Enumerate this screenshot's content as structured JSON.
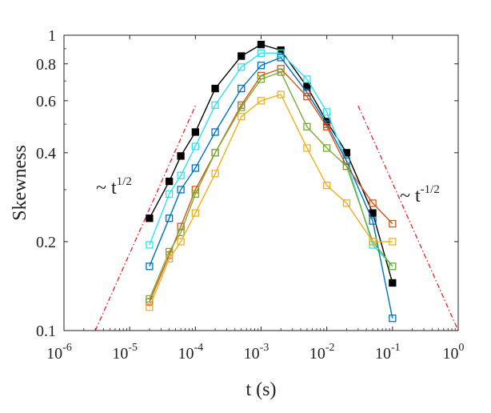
{
  "chart_data": {
    "type": "line",
    "xlabel": "t (s)",
    "ylabel": "Skewness",
    "xscale": "log",
    "yscale": "log",
    "xlim": [
      1e-06,
      1
    ],
    "ylim": [
      0.1,
      1
    ],
    "grid": false,
    "x_ticks": [
      {
        "value": 1e-06,
        "base": "10",
        "exp": "-6"
      },
      {
        "value": 1e-05,
        "base": "10",
        "exp": "-5"
      },
      {
        "value": 0.0001,
        "base": "10",
        "exp": "-4"
      },
      {
        "value": 0.001,
        "base": "10",
        "exp": "-3"
      },
      {
        "value": 0.01,
        "base": "10",
        "exp": "-2"
      },
      {
        "value": 0.1,
        "base": "10",
        "exp": "-1"
      },
      {
        "value": 1,
        "base": "10",
        "exp": "0"
      }
    ],
    "y_ticks": [
      {
        "value": 0.1,
        "label": "0.1"
      },
      {
        "value": 0.2,
        "label": "0.2"
      },
      {
        "value": 0.4,
        "label": "0.4"
      },
      {
        "value": 0.6,
        "label": "0.6"
      },
      {
        "value": 0.8,
        "label": "0.8"
      },
      {
        "value": 1,
        "label": "1"
      }
    ],
    "x": [
      2e-05,
      4e-05,
      6e-05,
      0.0001,
      0.0002,
      0.0005,
      0.001,
      0.002,
      0.005,
      0.01,
      0.02,
      0.05,
      0.1
    ],
    "series": [
      {
        "color": "#000000",
        "filled": true,
        "values": [
          0.24,
          0.32,
          0.39,
          0.47,
          0.66,
          0.85,
          0.93,
          0.89,
          0.67,
          0.51,
          0.4,
          0.25,
          0.145
        ]
      },
      {
        "color": "#33e0f0",
        "filled": false,
        "values": [
          0.195,
          0.29,
          0.335,
          0.42,
          0.58,
          0.78,
          0.87,
          0.87,
          0.71,
          0.55,
          0.375,
          0.195,
          0.165
        ]
      },
      {
        "color": "#0072bd",
        "filled": false,
        "values": [
          0.165,
          0.24,
          0.3,
          0.355,
          0.47,
          0.66,
          0.79,
          0.84,
          0.64,
          0.5,
          0.375,
          0.235,
          0.11
        ]
      },
      {
        "color": "#d95319",
        "filled": false,
        "values": [
          0.125,
          0.18,
          0.225,
          0.3,
          0.4,
          0.58,
          0.73,
          0.77,
          0.62,
          0.49,
          0.36,
          0.27,
          0.23
        ]
      },
      {
        "color": "#77ac30",
        "filled": false,
        "values": [
          0.128,
          0.185,
          0.215,
          0.29,
          0.4,
          0.57,
          0.71,
          0.75,
          0.49,
          0.415,
          0.36,
          0.2,
          0.165
        ]
      },
      {
        "color": "#edb120",
        "filled": false,
        "values": [
          0.12,
          0.175,
          0.2,
          0.25,
          0.34,
          0.53,
          0.6,
          0.63,
          0.415,
          0.31,
          0.27,
          0.2,
          0.2
        ]
      }
    ],
    "reference_lines": [
      {
        "label_base": "~ t",
        "label_exp": "1/2",
        "color": "#e8202a",
        "x": [
          3e-06,
          0.0001
        ],
        "y": [
          0.1,
          0.577
        ]
      },
      {
        "label_base": "~ t",
        "label_exp": "-1/2",
        "color": "#e8202a",
        "x": [
          0.03,
          1
        ],
        "y": [
          0.577,
          0.1
        ]
      }
    ]
  }
}
